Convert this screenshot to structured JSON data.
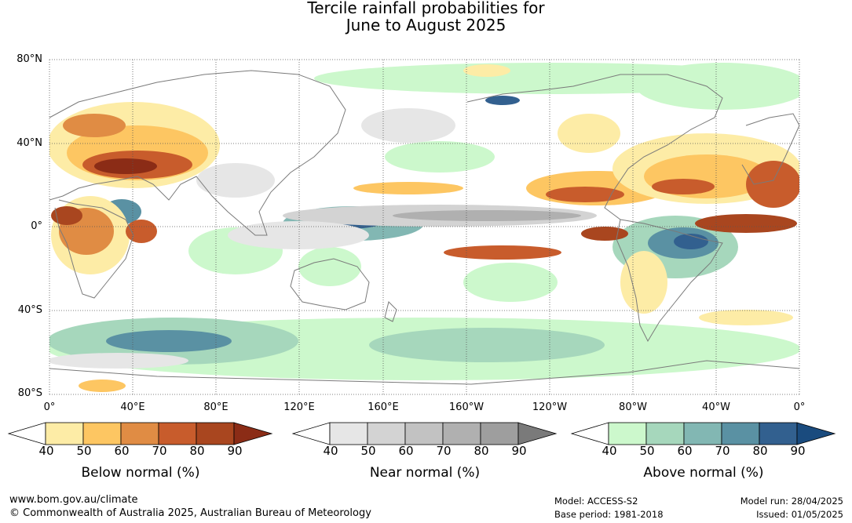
{
  "title": {
    "line1": "Tercile rainfall probabilities for",
    "line2": "June to August 2025"
  },
  "map": {
    "lat_labels": [
      "80°N",
      "40°N",
      "0°",
      "40°S",
      "80°S"
    ],
    "lon_labels": [
      "0°",
      "40°E",
      "80°E",
      "120°E",
      "160°E",
      "160°W",
      "120°W",
      "80°W",
      "40°W",
      "0°"
    ],
    "colors": {
      "ocean_background": "#ffffff",
      "coastline": "#7a7a7a",
      "gridline": "#555555"
    }
  },
  "legends": [
    {
      "caption": "Below normal (%)",
      "ticks": [
        "40",
        "50",
        "60",
        "70",
        "80",
        "90"
      ],
      "colors": [
        "#ffffff",
        "#fdeca6",
        "#fdc662",
        "#e08c44",
        "#c85c2c",
        "#a9461f",
        "#8b2c16"
      ]
    },
    {
      "caption": "Near normal (%)",
      "ticks": [
        "40",
        "50",
        "60",
        "70",
        "80",
        "90"
      ],
      "colors": [
        "#ffffff",
        "#e6e6e6",
        "#d3d3d3",
        "#c2c2c2",
        "#b0b0b0",
        "#9e9e9e",
        "#7a7a7a"
      ]
    },
    {
      "caption": "Above normal (%)",
      "ticks": [
        "40",
        "50",
        "60",
        "70",
        "80",
        "90"
      ],
      "colors": [
        "#ffffff",
        "#ccf8cc",
        "#a6d7bc",
        "#82b7b3",
        "#5a91a3",
        "#32608f",
        "#1a4b7e"
      ]
    }
  ],
  "footer": {
    "website": "www.bom.gov.au/climate",
    "copyright": "© Commonwealth of Australia 2025, Australian Bureau of Meteorology",
    "model": "Model: ACCESS-S2",
    "base_period": "Base period: 1981-2018",
    "model_run": "Model run: 28/04/2025",
    "issued": "Issued: 01/05/2025"
  }
}
